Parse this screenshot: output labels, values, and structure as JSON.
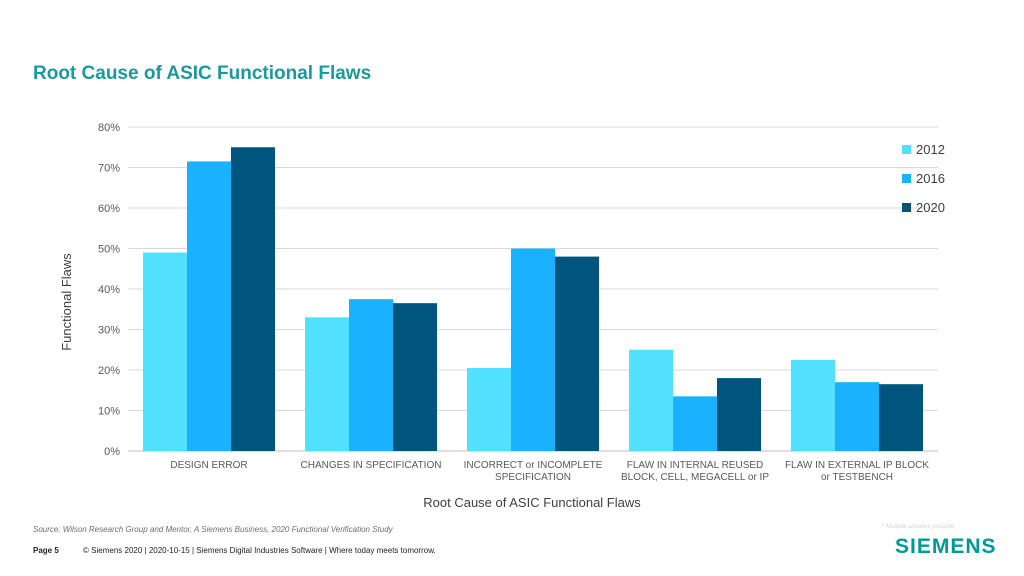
{
  "slide": {
    "title": "Root Cause of ASIC Functional Flaws",
    "source": "Source:  Wilson Research Group and Mentor,  A Siemens Business, 2020 Functional Verification Study",
    "footnote": "* Multiple answers possible",
    "page_label": "Page 5",
    "footer_text": "© Siemens 2020 | 2020-10-15 | Siemens Digital Industries Software | Where today meets tomorrow.",
    "logo": "SIEMENS"
  },
  "chart_data": {
    "type": "bar",
    "title": "",
    "xlabel": "Root Cause of ASIC Functional Flaws",
    "ylabel": "Functional Flaws",
    "ylim": [
      0,
      80
    ],
    "yticks": [
      "0%",
      "10%",
      "20%",
      "30%",
      "40%",
      "50%",
      "60%",
      "70%",
      "80%"
    ],
    "grid": true,
    "legend_position": "right",
    "categories": [
      [
        "DESIGN ERROR"
      ],
      [
        "CHANGES IN SPECIFICATION"
      ],
      [
        "INCORRECT or INCOMPLETE",
        "SPECIFICATION"
      ],
      [
        "FLAW IN INTERNAL REUSED",
        "BLOCK, CELL, MEGACELL or IP"
      ],
      [
        "FLAW IN EXTERNAL IP BLOCK",
        "or TESTBENCH"
      ]
    ],
    "series": [
      {
        "name": "2012",
        "color": "#52e0ff",
        "values": [
          49,
          33,
          20.5,
          25,
          22.5
        ]
      },
      {
        "name": "2016",
        "color": "#1ab2ff",
        "values": [
          71.5,
          37.5,
          50,
          13.5,
          17
        ]
      },
      {
        "name": "2020",
        "color": "#00557f",
        "values": [
          75,
          36.5,
          48,
          18,
          16.5
        ]
      }
    ]
  }
}
